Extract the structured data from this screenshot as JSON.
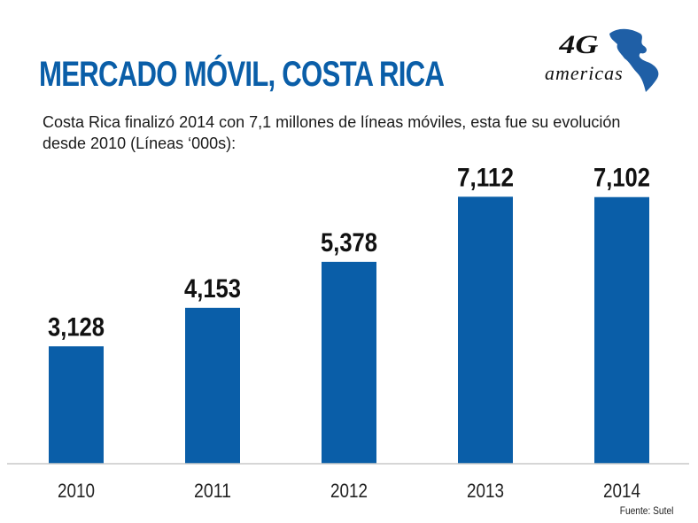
{
  "header": {
    "title": "MERCADO MÓVIL, COSTA RICA",
    "subtitle": "Costa Rica finalizó 2014 con 7,1 millones de líneas móviles, esta fue su evolución desde 2010 (Líneas ‘000s):",
    "logo_text_top": "4G",
    "logo_text_bottom": "americas"
  },
  "source": "Fuente: Sutel",
  "colors": {
    "bar": "#0a5ea8",
    "title": "#0a5ea8",
    "axis": "#c8c8c8"
  },
  "chart_data": {
    "type": "bar",
    "title": "MERCADO MÓVIL, COSTA RICA",
    "xlabel": "",
    "ylabel": "Líneas ('000s)",
    "categories": [
      "2010",
      "2011",
      "2012",
      "2013",
      "2014"
    ],
    "values": [
      3128,
      4153,
      5378,
      7112,
      7102
    ],
    "value_labels": [
      "3,128",
      "4,153",
      "5,378",
      "7,112",
      "7,102"
    ],
    "ylim": [
      0,
      7850
    ],
    "grid": false,
    "legend": "none"
  }
}
